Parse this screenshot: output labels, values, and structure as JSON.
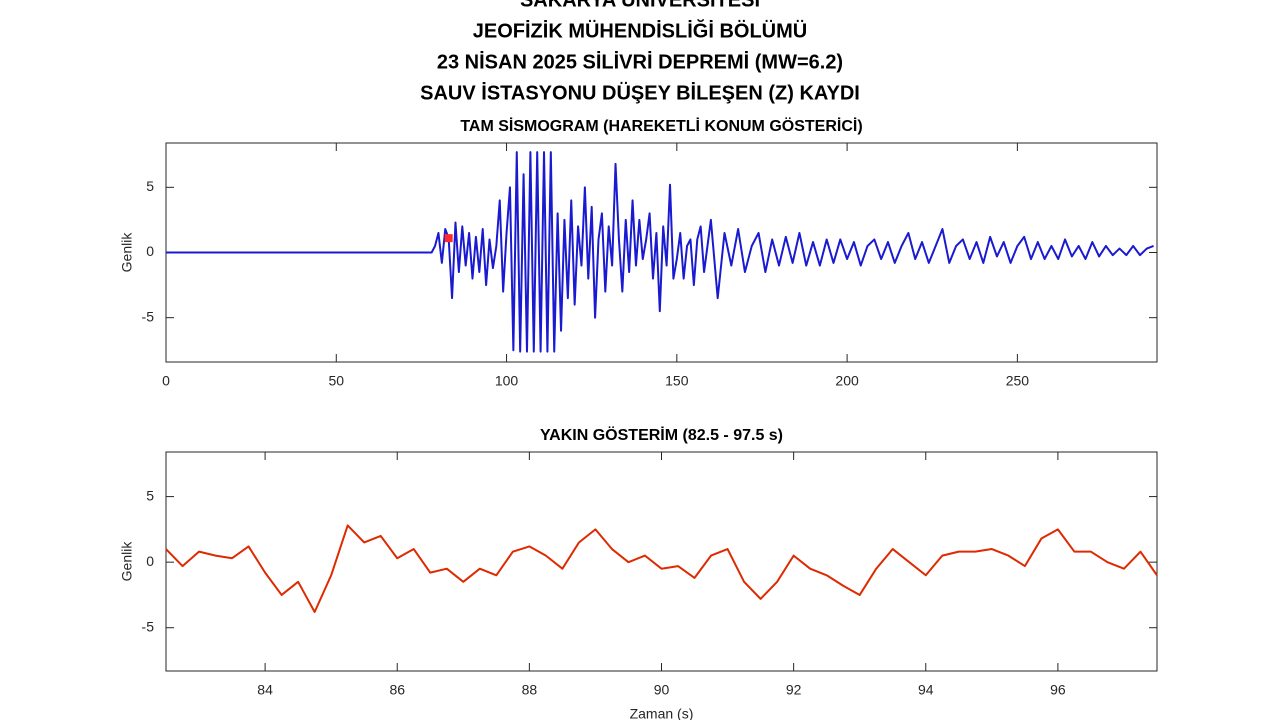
{
  "header": [
    "SAKARYA ÜNİVERSİTESİ",
    "JEOFİZİK MÜHENDİSLİĞİ BÖLÜMÜ",
    "23 NİSAN 2025 SİLİVRİ DEPREMİ (MW=6.2)",
    "SAUV İSTASYONU DÜŞEY BİLEŞEN (Z) KAYDI"
  ],
  "chart_data": [
    {
      "type": "line",
      "title": "TAM SİSMOGRAM (HAREKETLİ KONUM GÖSTERİCİ)",
      "ylabel": "Genlik",
      "xlim": [
        0,
        291
      ],
      "ylim": [
        -8.4,
        8.4
      ],
      "xticks": [
        0,
        50,
        100,
        150,
        200,
        250
      ],
      "yticks": [
        -5,
        0,
        5
      ],
      "x": [
        0,
        78,
        79,
        80,
        81,
        82,
        83,
        84,
        85,
        86,
        87,
        88,
        89,
        90,
        91,
        92,
        93,
        94,
        95,
        96,
        97,
        98,
        99,
        100,
        101,
        102,
        103,
        104,
        105,
        106,
        107,
        108,
        109,
        110,
        111,
        112,
        113,
        114,
        115,
        116,
        117,
        118,
        119,
        120,
        121,
        122,
        123,
        124,
        125,
        126,
        127,
        128,
        129,
        130,
        131,
        132,
        133,
        134,
        135,
        136,
        137,
        138,
        139,
        140,
        141,
        142,
        143,
        144,
        145,
        146,
        147,
        148,
        149,
        150,
        151,
        152,
        153,
        154,
        155,
        156,
        157,
        158,
        159,
        160,
        162,
        164,
        166,
        168,
        170,
        172,
        174,
        176,
        178,
        180,
        182,
        184,
        186,
        188,
        190,
        192,
        194,
        196,
        198,
        200,
        202,
        204,
        206,
        208,
        210,
        212,
        214,
        216,
        218,
        220,
        222,
        224,
        226,
        228,
        230,
        232,
        234,
        236,
        238,
        240,
        242,
        244,
        246,
        248,
        250,
        252,
        254,
        256,
        258,
        260,
        262,
        264,
        266,
        268,
        270,
        272,
        274,
        276,
        278,
        280,
        282,
        284,
        286,
        288,
        290
      ],
      "series": [
        {
          "color": "#1a1ad0",
          "values": [
            0,
            0,
            0.5,
            1.5,
            -0.8,
            1.8,
            1.1,
            -3.5,
            2.3,
            -1.5,
            2.0,
            -1.0,
            1.5,
            -2.0,
            1.2,
            -1.5,
            1.8,
            -2.5,
            1.0,
            -1.2,
            0.5,
            4.0,
            -3.0,
            1.5,
            5.0,
            -7.5,
            7.7,
            -7.6,
            6.0,
            -7.6,
            7.7,
            -7.6,
            7.7,
            -7.6,
            7.7,
            -7.6,
            7.7,
            -7.6,
            3.0,
            -6.0,
            2.5,
            -3.5,
            4.0,
            -4.0,
            2.0,
            -1.0,
            5.0,
            -2.0,
            3.5,
            -5.0,
            1.0,
            3.0,
            -3.0,
            2.0,
            -1.0,
            6.8,
            1.0,
            -3.0,
            2.5,
            -1.5,
            4.0,
            -1.0,
            2.5,
            -0.5,
            1.0,
            3.0,
            -2.0,
            1.5,
            -4.5,
            2.0,
            -1.0,
            5.2,
            -2.0,
            -0.5,
            1.5,
            -2.0,
            0.5,
            1.0,
            -2.5,
            1.0,
            2.0,
            -1.5,
            0.5,
            2.5,
            -3.5,
            1.5,
            -1.0,
            1.8,
            -1.5,
            0.5,
            1.5,
            -1.5,
            1.0,
            -1.0,
            1.2,
            -0.8,
            1.5,
            -1.0,
            0.8,
            -1.0,
            1.0,
            -0.8,
            1.0,
            -0.5,
            0.8,
            -1.0,
            0.5,
            1.0,
            -0.5,
            0.8,
            -0.8,
            0.5,
            1.5,
            -0.5,
            0.8,
            -0.8,
            0.5,
            1.8,
            -0.8,
            0.5,
            1.0,
            -0.5,
            0.8,
            -0.8,
            1.2,
            -0.3,
            0.8,
            -0.8,
            0.5,
            1.2,
            -0.5,
            0.8,
            -0.5,
            0.5,
            -0.5,
            1.0,
            -0.3,
            0.5,
            -0.5,
            0.8,
            -0.3,
            0.5,
            -0.2,
            0.3,
            -0.2,
            0.5,
            -0.2,
            0.3,
            0.5
          ]
        }
      ],
      "marker": {
        "x": 83,
        "y": 1.1,
        "color": "#ff2a2a"
      }
    },
    {
      "type": "line",
      "title": "YAKIN GÖSTERİM (82.5 - 97.5 s)",
      "ylabel": "Genlik",
      "xlabel": "Zaman (s)",
      "xlim": [
        82.5,
        97.5
      ],
      "ylim": [
        -8.3,
        8.4
      ],
      "xticks": [
        84,
        86,
        88,
        90,
        92,
        94,
        96
      ],
      "yticks": [
        -5,
        0,
        5
      ],
      "x": [
        82.5,
        82.75,
        83,
        83.25,
        83.5,
        83.75,
        84,
        84.25,
        84.5,
        84.75,
        85,
        85.25,
        85.5,
        85.75,
        86,
        86.25,
        86.5,
        86.75,
        87,
        87.25,
        87.5,
        87.75,
        88,
        88.25,
        88.5,
        88.75,
        89,
        89.25,
        89.5,
        89.75,
        90,
        90.25,
        90.5,
        90.75,
        91,
        91.25,
        91.5,
        91.75,
        92,
        92.25,
        92.5,
        92.75,
        93,
        93.25,
        93.5,
        93.75,
        94,
        94.25,
        94.5,
        94.75,
        95,
        95.25,
        95.5,
        95.75,
        96,
        96.25,
        96.5,
        96.75,
        97,
        97.25,
        97.5
      ],
      "series": [
        {
          "color": "#dd2a00",
          "values": [
            1.0,
            -0.3,
            0.8,
            0.5,
            0.3,
            1.2,
            -0.8,
            -2.5,
            -1.5,
            -3.8,
            -1.0,
            2.8,
            1.5,
            2.0,
            0.3,
            1.0,
            -0.8,
            -0.5,
            -1.5,
            -0.5,
            -1.0,
            0.8,
            1.2,
            0.5,
            -0.5,
            1.5,
            2.5,
            1.0,
            0.0,
            0.5,
            -0.5,
            -0.3,
            -1.2,
            0.5,
            1.0,
            -1.5,
            -2.8,
            -1.5,
            0.5,
            -0.5,
            -1.0,
            -1.8,
            -2.5,
            -0.5,
            1.0,
            0.0,
            -1.0,
            0.5,
            0.8,
            0.8,
            1.0,
            0.5,
            -0.3,
            1.8,
            2.5,
            0.8,
            0.8,
            0.0,
            -0.5,
            0.8,
            -1.0
          ]
        }
      ]
    }
  ]
}
